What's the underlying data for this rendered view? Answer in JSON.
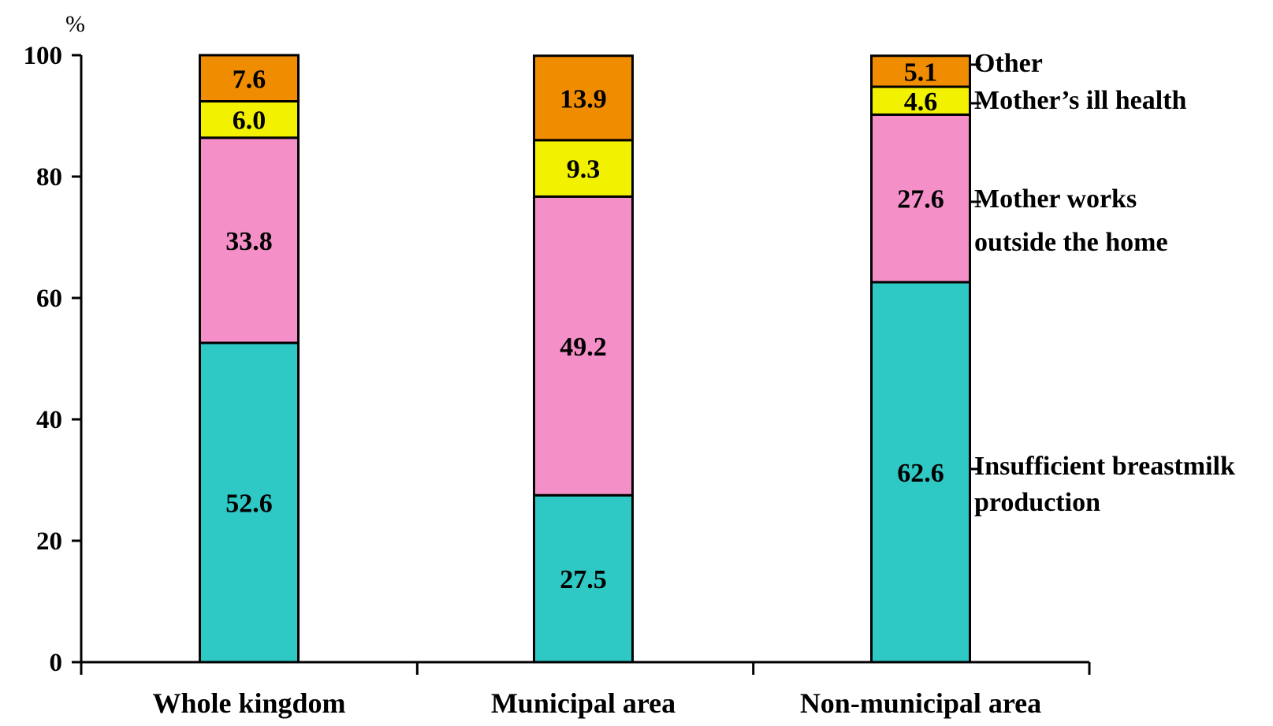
{
  "chart_data": {
    "type": "bar",
    "stacked": true,
    "categories": [
      "Whole kingdom",
      "Municipal area",
      "Non-municipal area"
    ],
    "series": [
      {
        "name": "Insufficient breastmilk production",
        "label_lines": [
          "Insufficient breastmilk",
          "production"
        ],
        "color": "#2ec8c5",
        "values": [
          52.6,
          27.5,
          62.6
        ]
      },
      {
        "name": "Mother works outside the home",
        "label_lines": [
          "Mother works",
          "outside the home"
        ],
        "color": "#f48fc8",
        "values": [
          33.8,
          49.2,
          27.6
        ]
      },
      {
        "name": "Mother’s ill health",
        "label_lines": [
          "Mother’s ill health"
        ],
        "color": "#f2f200",
        "values": [
          6.0,
          9.3,
          4.6
        ]
      },
      {
        "name": "Other",
        "label_lines": [
          "Other"
        ],
        "color": "#f08c00",
        "values": [
          7.6,
          13.9,
          5.1
        ]
      }
    ],
    "ylabel": "%",
    "ylim": [
      0,
      100
    ],
    "yticks": [
      0,
      20,
      40,
      60,
      80,
      100
    ],
    "grid": false,
    "legend_placement": "right"
  }
}
